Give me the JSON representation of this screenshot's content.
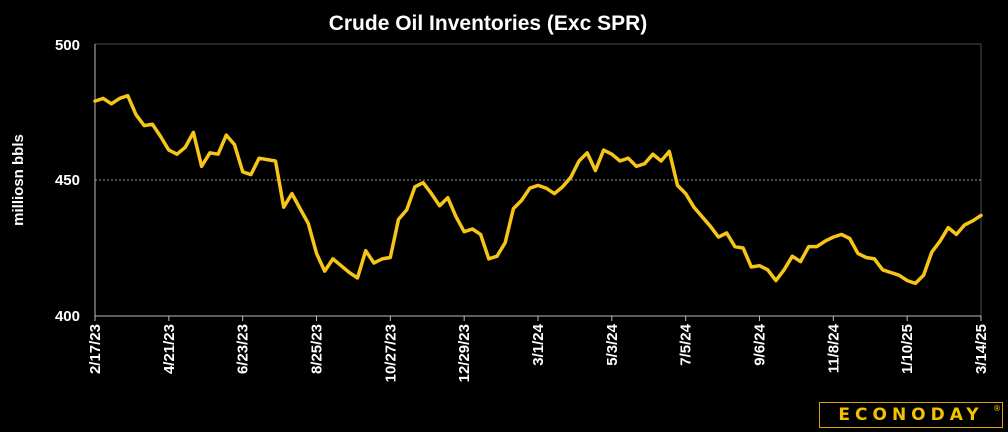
{
  "chart_data": {
    "type": "line",
    "title": "Crude Oil Inventories (Exc SPR)",
    "ylabel": "milliosn bbls",
    "xlabel": "",
    "ylim": [
      400,
      500
    ],
    "yticks": [
      "400",
      "450",
      "500"
    ],
    "reference_line": 450,
    "grid": false,
    "line_color": "#f5c518",
    "xticklabels": [
      "2/17/23",
      "4/21/23",
      "6/23/23",
      "8/25/23",
      "10/27/23",
      "12/29/23",
      "3/1/24",
      "5/3/24",
      "7/5/24",
      "9/6/24",
      "11/8/24",
      "1/10/25",
      "3/14/25"
    ],
    "values": [
      479,
      480,
      478,
      480,
      481,
      474,
      470,
      470.5,
      466,
      461,
      459.5,
      462,
      467.5,
      455,
      460,
      459.5,
      466.5,
      463,
      453,
      452,
      458,
      457.5,
      457,
      440,
      445,
      439.5,
      434,
      423,
      416.5,
      421,
      418.5,
      416,
      414,
      424,
      419.5,
      421,
      421.5,
      435.5,
      439,
      447.5,
      449,
      445,
      440.5,
      443.5,
      436.5,
      431,
      432,
      430,
      421,
      422,
      427,
      439.5,
      442.5,
      447,
      448,
      447,
      445,
      447.5,
      451,
      457,
      460,
      453.5,
      461,
      459.5,
      457,
      458,
      455,
      456,
      459.5,
      457,
      460.5,
      448,
      445,
      440,
      436.5,
      433,
      429,
      430.5,
      425.5,
      425,
      418,
      418.5,
      417,
      413,
      417,
      422,
      420,
      425.5,
      425.5,
      427.5,
      429,
      430,
      428.5,
      423,
      421.5,
      421,
      417,
      416,
      415,
      413,
      412,
      415,
      423.5,
      427.5,
      432.5,
      430,
      433.5,
      435,
      437
    ]
  },
  "brand": {
    "logo_text": "ECONODAY",
    "mark": "®"
  }
}
